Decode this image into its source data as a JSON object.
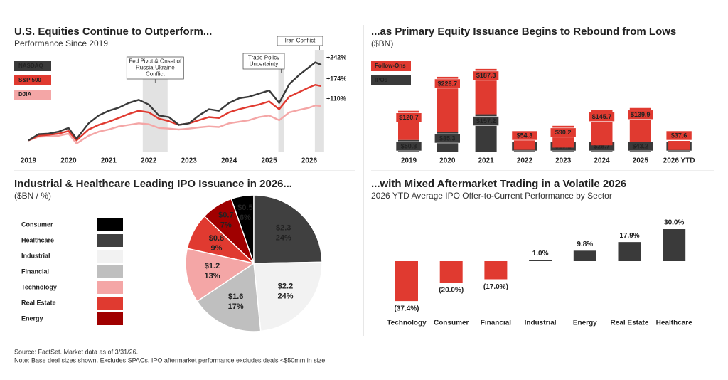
{
  "chart_data": [
    {
      "type": "line",
      "title": "U.S. Equities Continue to Outperform...",
      "subtitle": "Performance Since 2019",
      "x": [
        2019.0,
        2019.25,
        2019.5,
        2019.75,
        2020.0,
        2020.2,
        2020.5,
        2020.75,
        2021.0,
        2021.25,
        2021.5,
        2021.75,
        2022.0,
        2022.25,
        2022.5,
        2022.75,
        2023.0,
        2023.25,
        2023.5,
        2023.75,
        2024.0,
        2024.25,
        2024.5,
        2024.75,
        2025.0,
        2025.25,
        2025.5,
        2025.75,
        2026.0,
        2026.15,
        2026.3
      ],
      "series": [
        {
          "name": "NASDAQ",
          "color": "#3a3a3a",
          "end_label": "+242%",
          "values": [
            0,
            20,
            22,
            28,
            40,
            5,
            55,
            80,
            95,
            105,
            120,
            130,
            115,
            80,
            75,
            50,
            55,
            80,
            100,
            95,
            120,
            135,
            140,
            150,
            160,
            120,
            180,
            210,
            235,
            250,
            242
          ]
        },
        {
          "name": "S&P 500",
          "color": "#e03a30",
          "end_label": "+174%",
          "values": [
            0,
            15,
            18,
            22,
            30,
            0,
            35,
            50,
            60,
            72,
            85,
            95,
            90,
            70,
            62,
            50,
            55,
            65,
            75,
            72,
            90,
            100,
            108,
            115,
            125,
            100,
            140,
            155,
            170,
            178,
            174
          ]
        },
        {
          "name": "DJIA",
          "color": "#f4a6a6",
          "end_label": "+110%",
          "values": [
            0,
            12,
            13,
            15,
            22,
            -10,
            15,
            28,
            35,
            45,
            50,
            55,
            52,
            40,
            38,
            35,
            38,
            42,
            45,
            43,
            55,
            60,
            65,
            75,
            80,
            65,
            90,
            98,
            105,
            112,
            110
          ]
        }
      ],
      "xlim": [
        2019,
        2026.5
      ],
      "xticks": [
        2019,
        2020,
        2021,
        2022,
        2023,
        2024,
        2025,
        2026
      ],
      "ylim": [
        -40,
        290
      ],
      "annotations": [
        {
          "lines": [
            "Fed Pivot & Onset of",
            "Russia-Ukraine",
            "Conflict"
          ],
          "x0": 2021.85,
          "x1": 2022.47
        },
        {
          "lines": [
            "Trade Policy",
            "Uncertainty"
          ],
          "x0": 2025.23,
          "x1": 2025.37
        },
        {
          "lines": [
            "Iran Conflict"
          ],
          "x0": 2026.14,
          "x1": 2026.37
        }
      ]
    },
    {
      "type": "stacked_bar",
      "title": "...as Primary Equity Issuance Begins to Rebound from Lows",
      "subtitle": "($BN)",
      "categories": [
        "2019",
        "2020",
        "2021",
        "2022",
        "2023",
        "2024",
        "2025",
        "2026 YTD"
      ],
      "series": [
        {
          "name": "Follow-Ons",
          "color": "#e03a30",
          "values": [
            120.7,
            226.7,
            187.3,
            54.3,
            90.2,
            145.7,
            139.9,
            37.6
          ],
          "value_labels": [
            "$120.7",
            "$226.7",
            "$187.3",
            "$54.3",
            "$90.2",
            "$145.7",
            "$139.9",
            "$37.6"
          ]
        },
        {
          "name": "IPOs",
          "color": "#3a3a3a",
          "values": [
            50.8,
            85.3,
            157.2,
            10.0,
            19.2,
            28.7,
            43.2,
            9.4
          ],
          "value_labels": [
            "$50.8",
            "$85.3",
            "$157.2",
            "$10.0",
            "$19.2",
            "$28.7",
            "$43.2",
            "$9.4"
          ]
        }
      ],
      "ylim": [
        0,
        350
      ]
    },
    {
      "type": "pie",
      "title": "Industrial & Healthcare Leading IPO Issuance in 2026...",
      "subtitle": "($BN / %)",
      "categories": [
        "Consumer",
        "Healthcare",
        "Industrial",
        "Financial",
        "Technology",
        "Real Estate",
        "Energy"
      ],
      "values": [
        0.5,
        2.3,
        2.2,
        1.6,
        1.2,
        0.8,
        0.7
      ],
      "value_labels": [
        "$0.5",
        "$2.3",
        "$2.2",
        "$1.6",
        "$1.2",
        "$0.8",
        "$0.7"
      ],
      "percent_labels": [
        "6%",
        "24%",
        "24%",
        "17%",
        "13%",
        "9%",
        "7%"
      ],
      "colors": [
        "#000000",
        "#404040",
        "#f2f2f2",
        "#bfbfbf",
        "#f4a6a6",
        "#e03a30",
        "#a00000"
      ]
    },
    {
      "type": "bar",
      "title": "...with Mixed Aftermarket Trading in a Volatile 2026",
      "subtitle": "2026 YTD Average IPO Offer-to-Current Performance by Sector",
      "categories": [
        "Technology",
        "Consumer",
        "Financial",
        "Industrial",
        "Energy",
        "Real Estate",
        "Healthcare"
      ],
      "values": [
        -37.4,
        -20.0,
        -17.0,
        1.0,
        9.8,
        17.9,
        30.0
      ],
      "value_labels": [
        "(37.4%)",
        "(20.0%)",
        "(17.0%)",
        "1.0%",
        "9.8%",
        "17.9%",
        "30.0%"
      ],
      "colors": [
        "#e03a30",
        "#e03a30",
        "#e03a30",
        "#3a3a3a",
        "#3a3a3a",
        "#3a3a3a",
        "#3a3a3a"
      ],
      "ylim": [
        -40,
        35
      ]
    }
  ],
  "footer": {
    "source": "Source: FactSet. Market data as of 3/31/26.",
    "note": "Note: Base deal sizes shown. Excludes SPACs. IPO aftermarket performance excludes deals <$50mm in size."
  }
}
